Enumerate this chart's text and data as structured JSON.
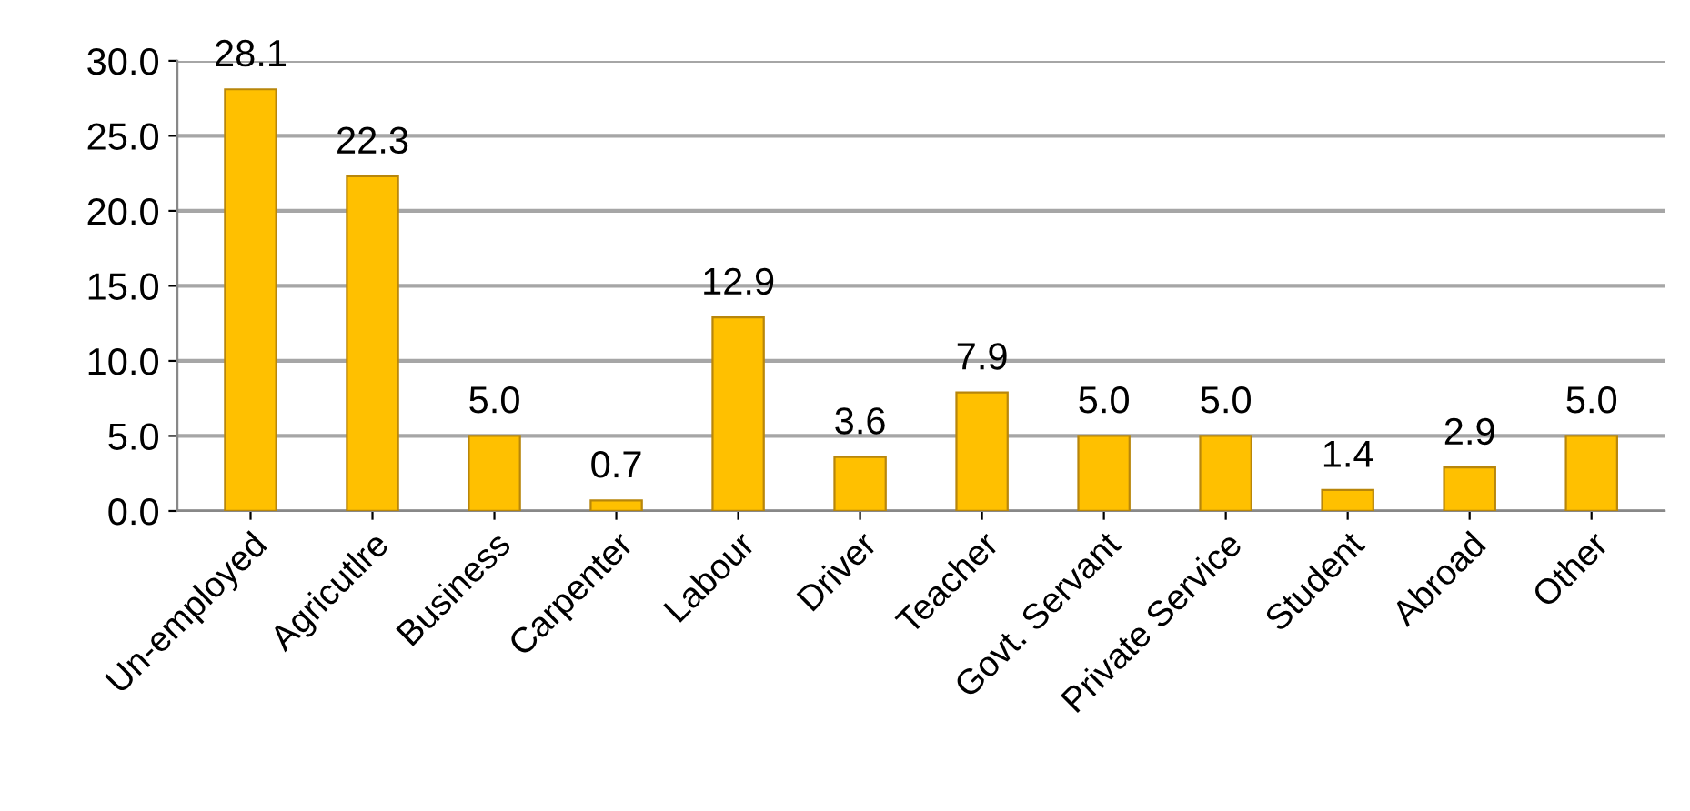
{
  "chart_data": {
    "type": "bar",
    "categories": [
      "Un-employed",
      "Agricutlre",
      "Business",
      "Carpenter",
      "Labour",
      "Driver",
      "Teacher",
      "Govt. Servant",
      "Private Service",
      "Student",
      "Abroad",
      "Other"
    ],
    "values": [
      28.1,
      22.3,
      5.0,
      0.7,
      12.9,
      3.6,
      7.9,
      5.0,
      5.0,
      1.4,
      2.9,
      5.0
    ],
    "value_labels": [
      "28.1",
      "22.3",
      "5.0",
      "0.7",
      "12.9",
      "3.6",
      "7.9",
      "5.0",
      "5.0",
      "1.4",
      "2.9",
      "5.0"
    ],
    "color": "#ffc000",
    "ylim": [
      0,
      30
    ],
    "yticks": [
      {
        "value": 0,
        "label": "0.0"
      },
      {
        "value": 5,
        "label": "5.0"
      },
      {
        "value": 10,
        "label": "10.0"
      },
      {
        "value": 15,
        "label": "15.0"
      },
      {
        "value": 20,
        "label": "20.0"
      },
      {
        "value": 25,
        "label": "25.0"
      },
      {
        "value": 30,
        "label": "30.0"
      }
    ],
    "grid": "y",
    "legend": false
  }
}
